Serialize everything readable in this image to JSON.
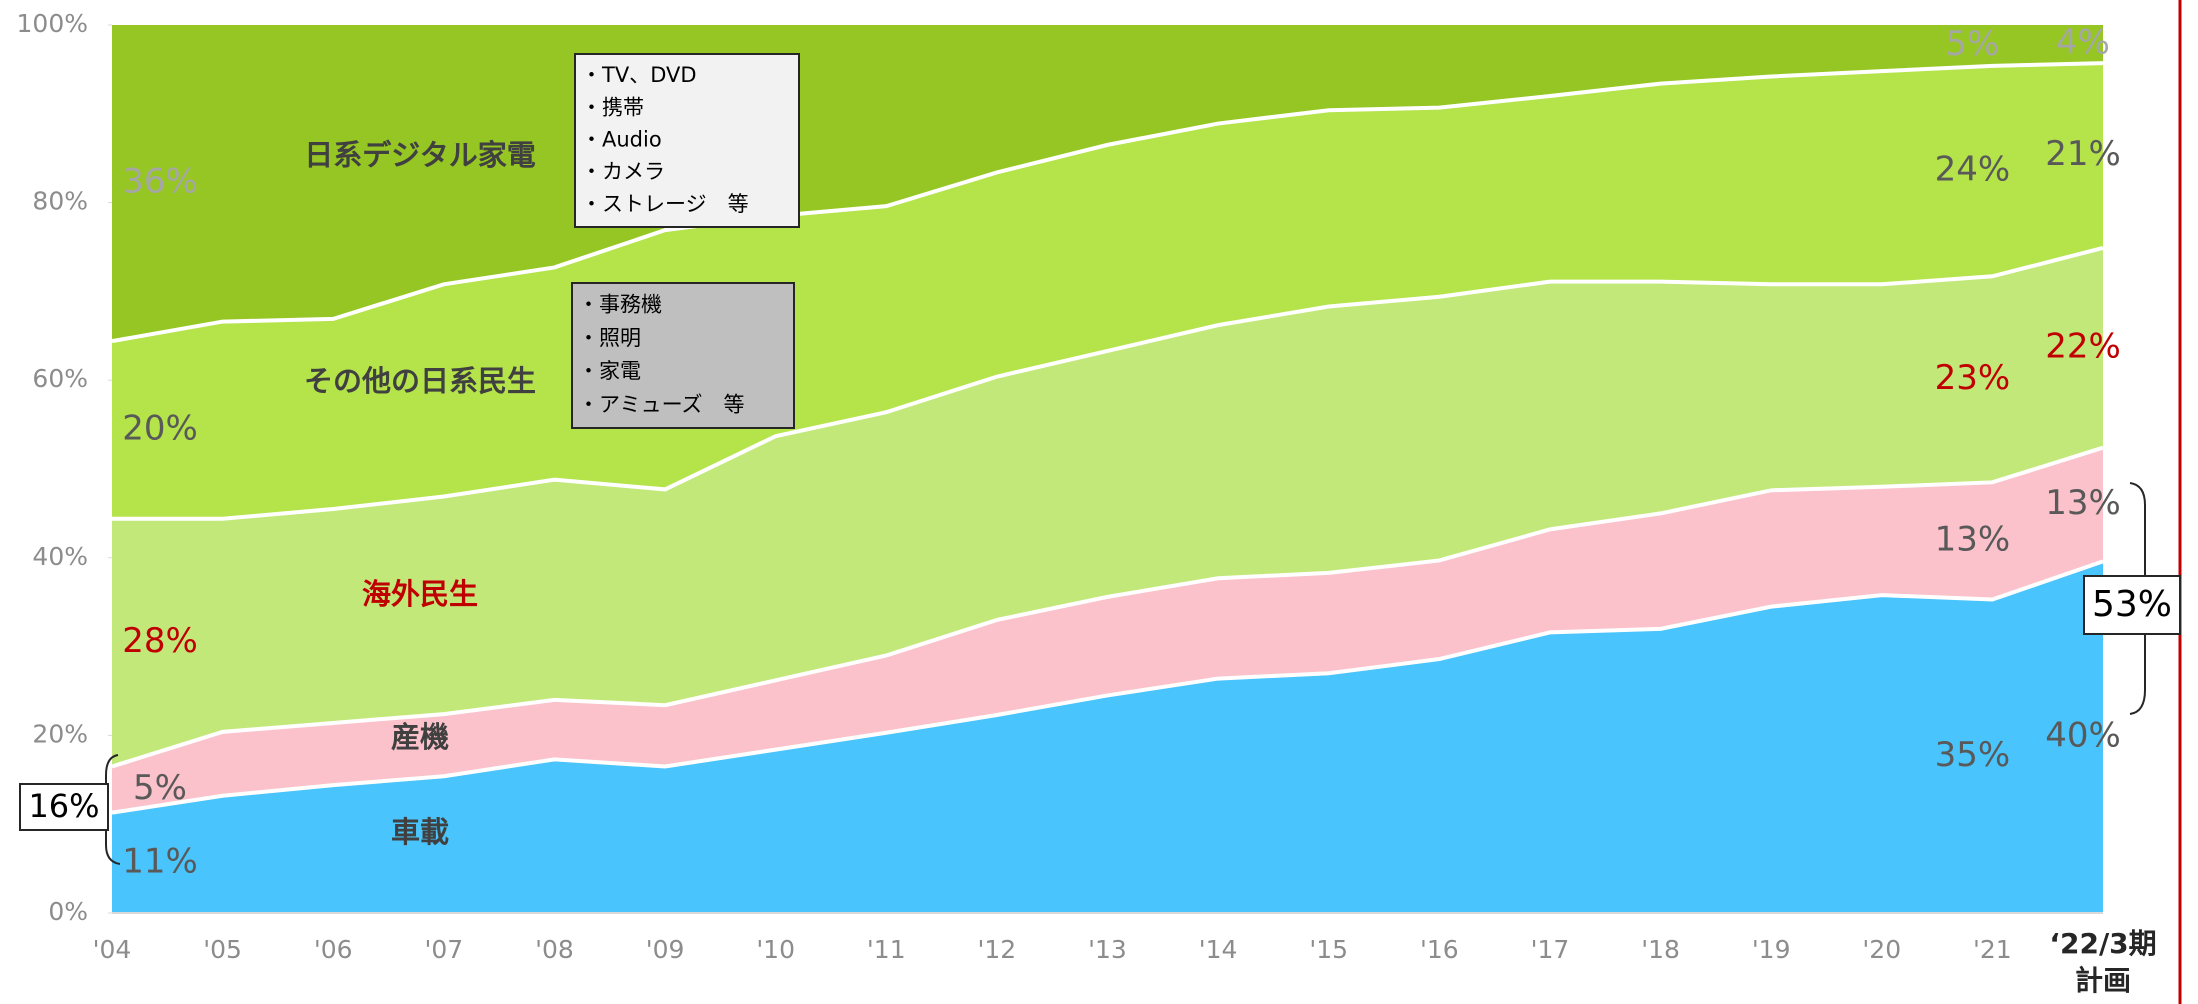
{
  "chart_data": {
    "type": "stacked_area",
    "categories": [
      "'04",
      "'05",
      "'06",
      "'07",
      "'08",
      "'09",
      "'10",
      "'11",
      "'12",
      "'13",
      "'14",
      "'15",
      "'16",
      "'17",
      "'18",
      "'19",
      "'20",
      "'21",
      "‘22/3期"
    ],
    "last_category_note": "計画",
    "ylim": [
      0,
      100
    ],
    "yticks": [
      {
        "value": 0,
        "label": "0%"
      },
      {
        "value": 20,
        "label": "20%"
      },
      {
        "value": 40,
        "label": "40%"
      },
      {
        "value": 60,
        "label": "60%"
      },
      {
        "value": 80,
        "label": "80%"
      },
      {
        "value": 100,
        "label": "100%"
      }
    ],
    "grid": false,
    "series": [
      {
        "name": "車載",
        "color": "#4ac4fc",
        "label_color": "#595959",
        "values": [
          11.3,
          13.2,
          14.4,
          15.4,
          17.3,
          16.5,
          18.4,
          20.3,
          22.3,
          24.5,
          26.4,
          27,
          28.6,
          31.6,
          32,
          34.5,
          35.8,
          35.3,
          39.6
        ],
        "value_labels": [
          "11%",
          null,
          null,
          null,
          null,
          null,
          null,
          null,
          null,
          null,
          null,
          null,
          null,
          null,
          null,
          null,
          null,
          "35%",
          "40%"
        ]
      },
      {
        "name": "産機",
        "color": "#fbc2cb",
        "label_color": "#595959",
        "values": [
          5.2,
          7.2,
          7,
          7,
          6.7,
          6.9,
          7.8,
          8.7,
          10.7,
          11.1,
          11.3,
          11.3,
          11.1,
          11.6,
          13,
          13.1,
          12.2,
          13.2,
          12.8
        ],
        "value_labels": [
          "5%",
          null,
          null,
          null,
          null,
          null,
          null,
          null,
          null,
          null,
          null,
          null,
          null,
          null,
          null,
          null,
          null,
          "13%",
          "13%"
        ]
      },
      {
        "name": "海外民生",
        "color": "#c3e87a",
        "label_color": "#c00000",
        "values": [
          27.9,
          24,
          24.1,
          24.5,
          24.8,
          24.3,
          27.5,
          27.4,
          27.4,
          27.7,
          28.5,
          30,
          29.7,
          27.9,
          26.1,
          23.2,
          22.8,
          23.2,
          22.5
        ],
        "value_labels": [
          "28%",
          null,
          null,
          null,
          null,
          null,
          null,
          null,
          null,
          null,
          null,
          null,
          null,
          null,
          null,
          null,
          null,
          "23%",
          "22%"
        ]
      },
      {
        "name": "その他の日系民生",
        "color": "#b4e34a",
        "label_color": "#595959",
        "values": [
          20,
          22.2,
          21.4,
          23.9,
          23.9,
          29.2,
          24.8,
          23.2,
          23,
          23.2,
          22.7,
          22.1,
          21.3,
          20.9,
          22.3,
          23.4,
          24,
          23.7,
          20.8
        ],
        "value_labels": [
          "20%",
          null,
          null,
          null,
          null,
          null,
          null,
          null,
          null,
          null,
          null,
          null,
          null,
          null,
          null,
          null,
          null,
          "24%",
          "21%"
        ]
      },
      {
        "name": "日系デジタル家電",
        "color": "#95c623",
        "label_color": "#a6a6a6",
        "values": [
          35.6,
          33.4,
          33.1,
          29.2,
          27.3,
          23.1,
          21.5,
          20.4,
          16.6,
          13.5,
          11.1,
          9.6,
          9.3,
          8,
          6.6,
          5.8,
          5.2,
          4.6,
          4.3
        ],
        "value_labels": [
          "36%",
          null,
          null,
          null,
          null,
          null,
          null,
          null,
          null,
          null,
          null,
          null,
          null,
          null,
          null,
          null,
          null,
          "5%",
          "4%"
        ]
      }
    ],
    "box_digital": [
      "・TV、DVD",
      "・携帯",
      "・Audio",
      "・カメラ",
      "・ストレージ　等"
    ],
    "box_other": [
      "・事務機",
      "・照明",
      "・家電",
      "・アミューズ　等"
    ],
    "bracket_start": "16%",
    "bracket_end": "53%"
  }
}
